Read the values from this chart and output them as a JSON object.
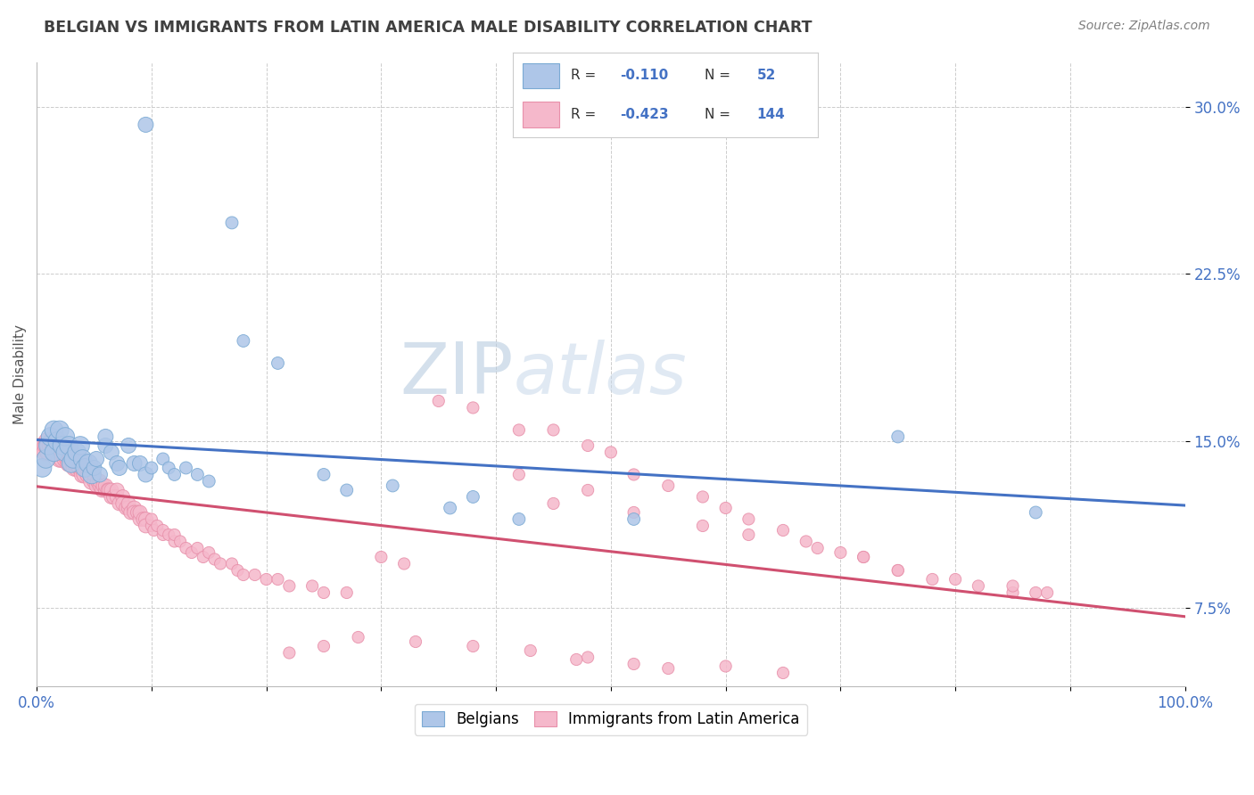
{
  "title": "BELGIAN VS IMMIGRANTS FROM LATIN AMERICA MALE DISABILITY CORRELATION CHART",
  "source_text": "Source: ZipAtlas.com",
  "ylabel": "Male Disability",
  "xlim": [
    0.0,
    1.0
  ],
  "ylim": [
    0.04,
    0.32
  ],
  "yticks": [
    0.075,
    0.15,
    0.225,
    0.3
  ],
  "ytick_labels": [
    "7.5%",
    "15.0%",
    "22.5%",
    "30.0%"
  ],
  "belgian_color": "#aec6e8",
  "immigrant_color": "#f5b8cb",
  "belgian_edge": "#7baad4",
  "immigrant_edge": "#e890aa",
  "line_blue": "#4472c4",
  "line_pink": "#d05070",
  "legend_R_blue": "-0.110",
  "legend_N_blue": "52",
  "legend_R_pink": "-0.423",
  "legend_N_pink": "144",
  "title_color": "#404040",
  "source_color": "#808080",
  "background_color": "#ffffff",
  "grid_color": "#cccccc",
  "watermark_zip_color": "#9fb8d8",
  "watermark_atlas_color": "#c8d8e8",
  "belgian_x": [
    0.005,
    0.008,
    0.01,
    0.012,
    0.015,
    0.015,
    0.018,
    0.02,
    0.022,
    0.025,
    0.025,
    0.028,
    0.03,
    0.032,
    0.035,
    0.038,
    0.04,
    0.042,
    0.045,
    0.048,
    0.05,
    0.052,
    0.055,
    0.06,
    0.06,
    0.065,
    0.07,
    0.072,
    0.08,
    0.085,
    0.09,
    0.095,
    0.1,
    0.11,
    0.115,
    0.12,
    0.13,
    0.14,
    0.15,
    0.17,
    0.18,
    0.21,
    0.25,
    0.27,
    0.31,
    0.36,
    0.38,
    0.42,
    0.52,
    0.75,
    0.87,
    0.095
  ],
  "belgian_y": [
    0.138,
    0.142,
    0.148,
    0.152,
    0.155,
    0.145,
    0.15,
    0.155,
    0.148,
    0.145,
    0.152,
    0.148,
    0.14,
    0.142,
    0.145,
    0.148,
    0.142,
    0.138,
    0.14,
    0.135,
    0.138,
    0.142,
    0.135,
    0.148,
    0.152,
    0.145,
    0.14,
    0.138,
    0.148,
    0.14,
    0.14,
    0.135,
    0.138,
    0.142,
    0.138,
    0.135,
    0.138,
    0.135,
    0.132,
    0.248,
    0.195,
    0.185,
    0.135,
    0.128,
    0.13,
    0.12,
    0.125,
    0.115,
    0.115,
    0.152,
    0.118,
    0.292
  ],
  "immigrant_x": [
    0.005,
    0.007,
    0.008,
    0.009,
    0.01,
    0.01,
    0.012,
    0.013,
    0.015,
    0.015,
    0.015,
    0.017,
    0.018,
    0.02,
    0.02,
    0.02,
    0.022,
    0.022,
    0.025,
    0.025,
    0.025,
    0.027,
    0.028,
    0.03,
    0.03,
    0.03,
    0.032,
    0.033,
    0.035,
    0.035,
    0.038,
    0.04,
    0.04,
    0.04,
    0.042,
    0.043,
    0.045,
    0.045,
    0.047,
    0.048,
    0.05,
    0.05,
    0.052,
    0.053,
    0.055,
    0.055,
    0.057,
    0.058,
    0.06,
    0.06,
    0.062,
    0.063,
    0.065,
    0.065,
    0.067,
    0.07,
    0.07,
    0.072,
    0.075,
    0.075,
    0.078,
    0.08,
    0.08,
    0.082,
    0.085,
    0.085,
    0.088,
    0.09,
    0.09,
    0.093,
    0.095,
    0.095,
    0.1,
    0.1,
    0.102,
    0.105,
    0.11,
    0.11,
    0.115,
    0.12,
    0.12,
    0.125,
    0.13,
    0.135,
    0.14,
    0.145,
    0.15,
    0.155,
    0.16,
    0.17,
    0.175,
    0.18,
    0.19,
    0.2,
    0.21,
    0.22,
    0.24,
    0.25,
    0.27,
    0.3,
    0.32,
    0.35,
    0.38,
    0.42,
    0.45,
    0.48,
    0.5,
    0.52,
    0.55,
    0.58,
    0.6,
    0.62,
    0.65,
    0.67,
    0.7,
    0.72,
    0.75,
    0.78,
    0.82,
    0.85,
    0.87,
    0.42,
    0.48,
    0.45,
    0.52,
    0.58,
    0.62,
    0.68,
    0.72,
    0.75,
    0.8,
    0.85,
    0.88,
    0.6,
    0.65,
    0.52,
    0.55,
    0.48,
    0.43,
    0.47,
    0.38,
    0.33,
    0.28,
    0.25,
    0.22
  ],
  "immigrant_y": [
    0.148,
    0.145,
    0.148,
    0.15,
    0.145,
    0.148,
    0.148,
    0.15,
    0.145,
    0.148,
    0.15,
    0.148,
    0.145,
    0.142,
    0.145,
    0.148,
    0.145,
    0.142,
    0.142,
    0.145,
    0.148,
    0.142,
    0.14,
    0.14,
    0.142,
    0.145,
    0.14,
    0.138,
    0.138,
    0.14,
    0.138,
    0.135,
    0.138,
    0.14,
    0.135,
    0.138,
    0.135,
    0.138,
    0.135,
    0.132,
    0.132,
    0.135,
    0.13,
    0.132,
    0.13,
    0.132,
    0.128,
    0.13,
    0.128,
    0.13,
    0.128,
    0.128,
    0.125,
    0.128,
    0.125,
    0.125,
    0.128,
    0.122,
    0.125,
    0.122,
    0.12,
    0.12,
    0.122,
    0.118,
    0.12,
    0.118,
    0.118,
    0.115,
    0.118,
    0.115,
    0.115,
    0.112,
    0.112,
    0.115,
    0.11,
    0.112,
    0.108,
    0.11,
    0.108,
    0.105,
    0.108,
    0.105,
    0.102,
    0.1,
    0.102,
    0.098,
    0.1,
    0.097,
    0.095,
    0.095,
    0.092,
    0.09,
    0.09,
    0.088,
    0.088,
    0.085,
    0.085,
    0.082,
    0.082,
    0.098,
    0.095,
    0.168,
    0.165,
    0.155,
    0.155,
    0.148,
    0.145,
    0.135,
    0.13,
    0.125,
    0.12,
    0.115,
    0.11,
    0.105,
    0.1,
    0.098,
    0.092,
    0.088,
    0.085,
    0.082,
    0.082,
    0.135,
    0.128,
    0.122,
    0.118,
    0.112,
    0.108,
    0.102,
    0.098,
    0.092,
    0.088,
    0.085,
    0.082,
    0.049,
    0.046,
    0.05,
    0.048,
    0.053,
    0.056,
    0.052,
    0.058,
    0.06,
    0.062,
    0.058,
    0.055
  ]
}
